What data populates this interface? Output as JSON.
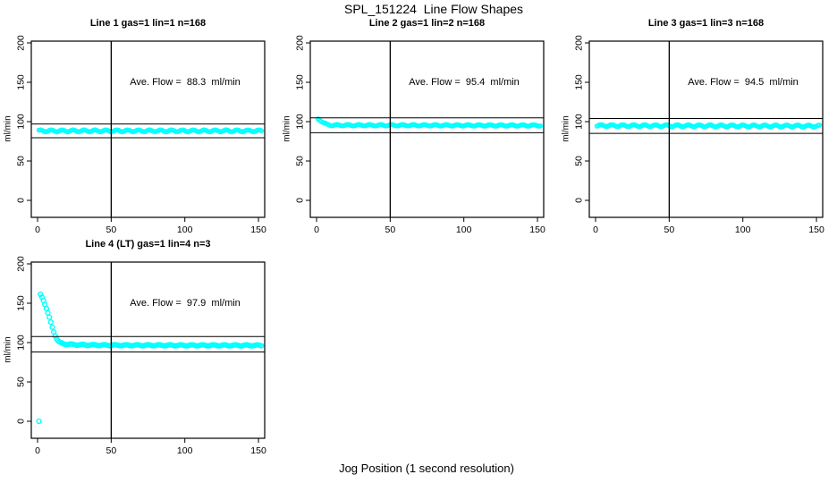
{
  "title": "SPL_151224  Line Flow Shapes",
  "xlabel": "Jog Position (1 second resolution)",
  "ylabel": "ml/min",
  "point_color": "#00FFFF",
  "axis_color": "#000000",
  "chart_data": [
    {
      "type": "scatter",
      "title": "Line 1 gas=1 lin=1 n=168",
      "n": 168,
      "annotation": "Ave. Flow =  88.3  ml/min",
      "ave_flow": 88.3,
      "ylabel": "ml/min",
      "xlim": [
        0,
        150
      ],
      "ylim": [
        0,
        200
      ],
      "xticks": [
        0,
        50,
        100,
        150
      ],
      "yticks": [
        0,
        50,
        100,
        150,
        200
      ],
      "vline_x": 50,
      "hlines": [
        79.5,
        97.1
      ],
      "series_anchors": [
        [
          1,
          88.3
        ],
        [
          152,
          88.3
        ]
      ],
      "extra_points": [],
      "jitter": 1.2,
      "marker_r": 2.1
    },
    {
      "type": "scatter",
      "title": "Line 2 gas=1 lin=2 n=168",
      "n": 168,
      "annotation": "Ave. Flow =  95.4  ml/min",
      "ave_flow": 95.4,
      "ylabel": "ml/min",
      "xlim": [
        0,
        150
      ],
      "ylim": [
        0,
        200
      ],
      "xticks": [
        0,
        50,
        100,
        150
      ],
      "yticks": [
        0,
        50,
        100,
        150,
        200
      ],
      "vline_x": 50,
      "hlines": [
        85.9,
        104.9
      ],
      "series_anchors": [
        [
          1,
          103.5
        ],
        [
          2,
          102.5
        ],
        [
          3,
          101.2
        ],
        [
          4,
          99.6
        ],
        [
          5,
          98.2
        ],
        [
          6,
          97.2
        ],
        [
          7,
          96.4
        ],
        [
          8,
          95.9
        ],
        [
          10,
          95.5
        ],
        [
          152,
          95.2
        ]
      ],
      "extra_points": [],
      "jitter": 0.9,
      "marker_r": 2.1
    },
    {
      "type": "scatter",
      "title": "Line 3 gas=1 lin=3 n=168",
      "n": 168,
      "annotation": "Ave. Flow =  94.5  ml/min",
      "ave_flow": 94.5,
      "ylabel": "ml/min",
      "xlim": [
        0,
        150
      ],
      "ylim": [
        0,
        200
      ],
      "xticks": [
        0,
        50,
        100,
        150
      ],
      "yticks": [
        0,
        50,
        100,
        150,
        200
      ],
      "vline_x": 50,
      "hlines": [
        85.1,
        104.0
      ],
      "series_anchors": [
        [
          1,
          95.0
        ],
        [
          152,
          94.4
        ]
      ],
      "extra_points": [],
      "jitter": 1.2,
      "marker_r": 2.1
    },
    {
      "type": "scatter",
      "title": "Line 4 (LT) gas=1 lin=4 n=3",
      "n": 3,
      "annotation": "Ave. Flow =  97.9  ml/min",
      "ave_flow": 97.9,
      "ylabel": "ml/min",
      "xlim": [
        0,
        150
      ],
      "ylim": [
        0,
        200
      ],
      "xticks": [
        0,
        50,
        100,
        150
      ],
      "yticks": [
        0,
        50,
        100,
        150,
        200
      ],
      "vline_x": 50,
      "hlines": [
        88.1,
        107.7
      ],
      "series_anchors": [
        [
          2,
          161
        ],
        [
          3,
          158
        ],
        [
          4,
          154
        ],
        [
          5,
          149
        ],
        [
          6,
          143.5
        ],
        [
          7,
          137.5
        ],
        [
          8,
          131.5
        ],
        [
          9,
          125.5
        ],
        [
          10,
          119.5
        ],
        [
          11,
          114
        ],
        [
          12,
          109
        ],
        [
          13,
          105
        ],
        [
          14,
          102
        ],
        [
          15,
          100.2
        ],
        [
          16,
          99.3
        ],
        [
          17,
          98.8
        ],
        [
          18,
          98.4
        ],
        [
          20,
          98
        ],
        [
          22,
          97.7
        ],
        [
          25,
          97.4
        ],
        [
          30,
          97.1
        ],
        [
          40,
          96.8
        ],
        [
          60,
          96.6
        ],
        [
          100,
          96.5
        ],
        [
          152,
          96.4
        ]
      ],
      "extra_points": [
        [
          1,
          0
        ]
      ],
      "jitter": 0.7,
      "marker_r": 2.4
    }
  ]
}
